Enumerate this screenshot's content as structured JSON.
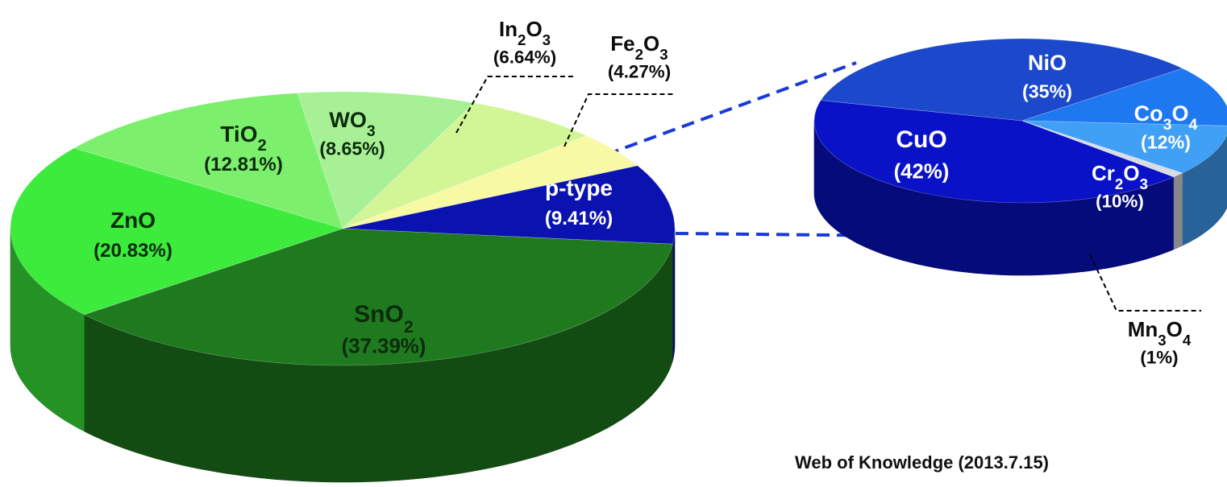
{
  "chart_data": [
    {
      "type": "pie",
      "style": "3d-exploded",
      "slices": [
        {
          "label": "p-type",
          "value": 9.41,
          "pct_text": "(9.41%)",
          "color": "#0A12B0"
        },
        {
          "label": "SnO2",
          "value": 37.39,
          "pct_text": "(37.39%)",
          "color": "#1F7A1F"
        },
        {
          "label": "ZnO",
          "value": 20.83,
          "pct_text": "(20.83%)",
          "color": "#3CEB3C"
        },
        {
          "label": "TiO2",
          "value": 12.81,
          "pct_text": "(12.81%)",
          "color": "#7CF06C"
        },
        {
          "label": "WO3",
          "value": 8.65,
          "pct_text": "(8.65%)",
          "color": "#A8F096"
        },
        {
          "label": "In2O3",
          "value": 6.64,
          "pct_text": "(6.64%)",
          "color": "#D2F596"
        },
        {
          "label": "Fe2O3",
          "value": 4.27,
          "pct_text": "(4.27%)",
          "color": "#F7F9A5"
        }
      ]
    },
    {
      "type": "pie",
      "style": "3d-exploded",
      "slices": [
        {
          "label": "CuO",
          "value": 42,
          "pct_text": "(42%)",
          "color": "#0A12C8"
        },
        {
          "label": "NiO",
          "value": 35,
          "pct_text": "(35%)",
          "color": "#1C48CC"
        },
        {
          "label": "Co3O4",
          "value": 12,
          "pct_text": "(12%)",
          "color": "#1E78F0"
        },
        {
          "label": "Cr2O3",
          "value": 10,
          "pct_text": "(10%)",
          "color": "#3FA0F5"
        },
        {
          "label": "Mn3O4",
          "value": 1,
          "pct_text": "(1%)",
          "color": "#D8DCE4"
        }
      ]
    }
  ],
  "source_note": "Web of Knowledge (2013.7.15)"
}
